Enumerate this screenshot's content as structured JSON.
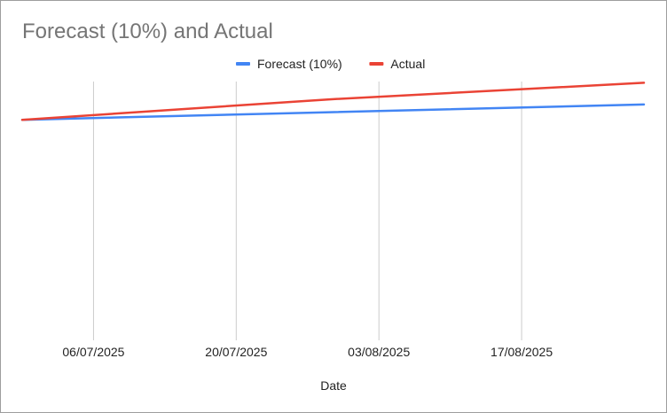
{
  "chart_data": {
    "type": "line",
    "title": "Forecast (10%) and Actual",
    "xlabel": "Date",
    "ylabel": "",
    "x_tick_labels": [
      "06/07/2025",
      "20/07/2025",
      "03/08/2025",
      "17/08/2025"
    ],
    "x_ticks": [
      "2025-07-06",
      "2025-07-20",
      "2025-08-03",
      "2025-08-17"
    ],
    "xlim": [
      "2025-06-29",
      "2025-08-29"
    ],
    "ylim": [
      0,
      100
    ],
    "y_axis_labels_visible": false,
    "grid": "vertical",
    "legend_position": "top",
    "series": [
      {
        "name": "Forecast (10%)",
        "color": "#4285F4",
        "points": [
          {
            "x": "2025-06-29",
            "y": 85
          },
          {
            "x": "2025-08-29",
            "y": 91
          }
        ]
      },
      {
        "name": "Actual",
        "color": "#EA4335",
        "points": [
          {
            "x": "2025-06-29",
            "y": 85
          },
          {
            "x": "2025-07-29",
            "y": 93
          },
          {
            "x": "2025-08-29",
            "y": 99.5
          }
        ]
      }
    ]
  }
}
